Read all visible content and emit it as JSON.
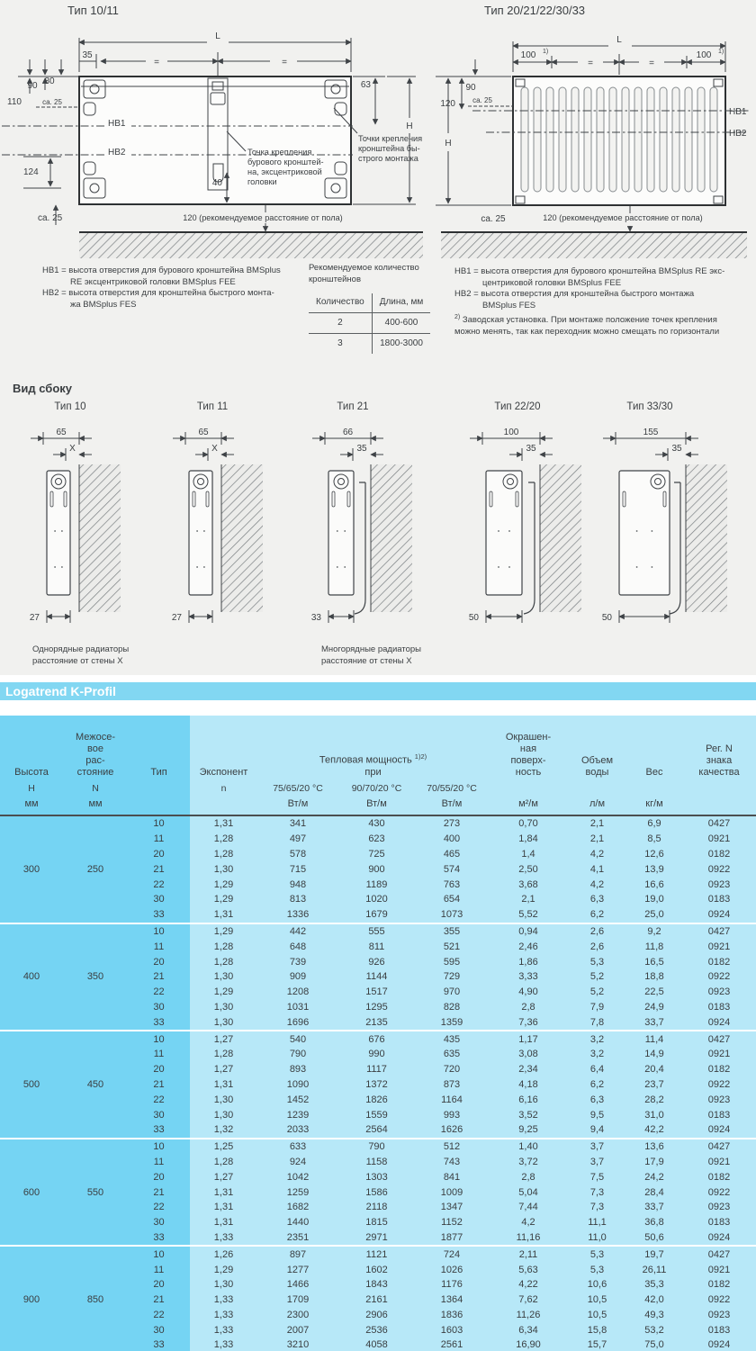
{
  "colors": {
    "band_bg": "#82d7f2",
    "table_dark_cyan": "#75d4f3",
    "table_light_cyan": "#b7e8f8",
    "page_top_bg": "#f1f1ef"
  },
  "front_views": {
    "left": {
      "title": "Тип 10/11",
      "dim_L": "L",
      "dim_35": "35",
      "eq": "=",
      "dim_90": "90",
      "dim_80": "80",
      "dim_110": "110",
      "ca25": "ca. 25",
      "hb1": "HB1",
      "hb2": "HB2",
      "dim_124": "124",
      "dim_63": "63",
      "dim_40": "40",
      "dim_H": "H",
      "floor_note": "120 (рекомендуемое расстояние от пола)",
      "callout_drill_lines": [
        "Точка крепления",
        "бурового кронштей-",
        "на, эксцентриковой",
        "головки"
      ],
      "callout_quick_lines": [
        "Точки крепления",
        "кронштейна бы-",
        "строго монтажа"
      ]
    },
    "right": {
      "title": "Тип 20/21/22/30/33",
      "dim_L": "L",
      "dim_100": "100",
      "sup1": "1)",
      "eq": "=",
      "dim_90": "90",
      "dim_120": "120",
      "ca25": "ca. 25",
      "dim_H": "H",
      "hb1": "HB1",
      "hb2": "HB2",
      "floor_note": "120 (рекомендуемое расстояние от пола)"
    }
  },
  "legend_left": {
    "lines": [
      {
        "t": "HB1 = высота отверстия для бурового кронштейна BMSplus",
        "c": false
      },
      {
        "t": "RE эксцентриковой головки BMSplus FEE",
        "c": true
      },
      {
        "t": "HB2 = высота отверстия для кронштейна быстрого монта-",
        "c": false
      },
      {
        "t": "жа BMSplus FES",
        "c": true
      }
    ]
  },
  "legend_bracket": {
    "title_lines": [
      "Рекомендуемое количество",
      "кронштейнов"
    ],
    "col_qty": "Количество",
    "col_len": "Длина, мм",
    "rows": [
      [
        "2",
        "400-600"
      ],
      [
        "3",
        "1800-3000"
      ]
    ]
  },
  "legend_right": {
    "lines": [
      {
        "t": "HB1 = высота отверстия для бурового кронштейна BMSplus RE экс-",
        "c": false
      },
      {
        "t": "центриковой головки BMSplus FEE",
        "c": true
      },
      {
        "t": "HB2 = высота отверстия для кронштейна быстрого монтажа",
        "c": false
      },
      {
        "t": "BMSplus FES",
        "c": true
      }
    ],
    "footnote_sup": "2)",
    "footnote_lines": [
      "Заводская установка. При монтаже положение точек крепления",
      "можно менять, так как переходник можно смещать по горизонтали"
    ]
  },
  "side_view": {
    "heading": "Вид сбоку",
    "items": [
      {
        "label": "Тип 10",
        "top_dim": "65",
        "gap_dim": "X",
        "bottom_dim": "27"
      },
      {
        "label": "Тип 11",
        "top_dim": "65",
        "gap_dim": "X",
        "bottom_dim": "27"
      },
      {
        "label": "Тип 21",
        "top_dim": "66",
        "gap_dim": "35",
        "bottom_dim": "33"
      },
      {
        "label": "Тип 22/20",
        "top_dim": "100",
        "gap_dim": "35",
        "bottom_dim": "50"
      },
      {
        "label": "Тип 33/30",
        "top_dim": "155",
        "gap_dim": "35",
        "bottom_dim": "50"
      }
    ],
    "caption_single_lines": [
      "Однорядные радиаторы",
      "расстояние от стены X"
    ],
    "caption_multi_lines": [
      "Многорядные радиаторы",
      "расстояние от стены X"
    ]
  },
  "band": {
    "title": "Logatrend K-Profil"
  },
  "table": {
    "header": {
      "height": "Высота",
      "spacing_lines": [
        "Межосе-",
        "вое",
        "рас-",
        "стояние"
      ],
      "type": "Тип",
      "exponent": "Экспонент",
      "power": "Тепловая мощность",
      "power_sup": "1)2)",
      "power_at": "при",
      "temp1": "75/65/20 °C",
      "temp2": "90/70/20 °C",
      "temp3": "70/55/20 °C",
      "surface_lines": [
        "Окрашен-",
        "ная",
        "поверх-",
        "ность"
      ],
      "volume_lines": [
        "Объем",
        "воды"
      ],
      "weight": "Вес",
      "reg_lines": [
        "Рег. N",
        "знака",
        "качества"
      ],
      "h": "H",
      "n_label": "N",
      "n_exp": "n",
      "mm": "мм",
      "wtm": "Вт/м",
      "m2m": "м²/м",
      "lm": "л/м",
      "kgm": "кг/м"
    },
    "groups": [
      {
        "height": "300",
        "spacing": "250",
        "rows": [
          {
            "type": "10",
            "n": "1,31",
            "p75": "341",
            "p90": "430",
            "p70": "273",
            "surface": "0,70",
            "volume": "2,1",
            "weight": "6,9",
            "reg": "0427"
          },
          {
            "type": "11",
            "n": "1,28",
            "p75": "497",
            "p90": "623",
            "p70": "400",
            "surface": "1,84",
            "volume": "2,1",
            "weight": "8,5",
            "reg": "0921"
          },
          {
            "type": "20",
            "n": "1,28",
            "p75": "578",
            "p90": "725",
            "p70": "465",
            "surface": "1,4",
            "volume": "4,2",
            "weight": "12,6",
            "reg": "0182"
          },
          {
            "type": "21",
            "n": "1,30",
            "p75": "715",
            "p90": "900",
            "p70": "574",
            "surface": "2,50",
            "volume": "4,1",
            "weight": "13,9",
            "reg": "0922"
          },
          {
            "type": "22",
            "n": "1,29",
            "p75": "948",
            "p90": "1189",
            "p70": "763",
            "surface": "3,68",
            "volume": "4,2",
            "weight": "16,6",
            "reg": "0923"
          },
          {
            "type": "30",
            "n": "1,29",
            "p75": "813",
            "p90": "1020",
            "p70": "654",
            "surface": "2,1",
            "volume": "6,3",
            "weight": "19,0",
            "reg": "0183"
          },
          {
            "type": "33",
            "n": "1,31",
            "p75": "1336",
            "p90": "1679",
            "p70": "1073",
            "surface": "5,52",
            "volume": "6,2",
            "weight": "25,0",
            "reg": "0924"
          }
        ]
      },
      {
        "height": "400",
        "spacing": "350",
        "rows": [
          {
            "type": "10",
            "n": "1,29",
            "p75": "442",
            "p90": "555",
            "p70": "355",
            "surface": "0,94",
            "volume": "2,6",
            "weight": "9,2",
            "reg": "0427"
          },
          {
            "type": "11",
            "n": "1,28",
            "p75": "648",
            "p90": "811",
            "p70": "521",
            "surface": "2,46",
            "volume": "2,6",
            "weight": "11,8",
            "reg": "0921"
          },
          {
            "type": "20",
            "n": "1,28",
            "p75": "739",
            "p90": "926",
            "p70": "595",
            "surface": "1,86",
            "volume": "5,3",
            "weight": "16,5",
            "reg": "0182"
          },
          {
            "type": "21",
            "n": "1,30",
            "p75": "909",
            "p90": "1144",
            "p70": "729",
            "surface": "3,33",
            "volume": "5,2",
            "weight": "18,8",
            "reg": "0922"
          },
          {
            "type": "22",
            "n": "1,29",
            "p75": "1208",
            "p90": "1517",
            "p70": "970",
            "surface": "4,90",
            "volume": "5,2",
            "weight": "22,5",
            "reg": "0923"
          },
          {
            "type": "30",
            "n": "1,30",
            "p75": "1031",
            "p90": "1295",
            "p70": "828",
            "surface": "2,8",
            "volume": "7,9",
            "weight": "24,9",
            "reg": "0183"
          },
          {
            "type": "33",
            "n": "1,30",
            "p75": "1696",
            "p90": "2135",
            "p70": "1359",
            "surface": "7,36",
            "volume": "7,8",
            "weight": "33,7",
            "reg": "0924"
          }
        ]
      },
      {
        "height": "500",
        "spacing": "450",
        "rows": [
          {
            "type": "10",
            "n": "1,27",
            "p75": "540",
            "p90": "676",
            "p70": "435",
            "surface": "1,17",
            "volume": "3,2",
            "weight": "11,4",
            "reg": "0427"
          },
          {
            "type": "11",
            "n": "1,28",
            "p75": "790",
            "p90": "990",
            "p70": "635",
            "surface": "3,08",
            "volume": "3,2",
            "weight": "14,9",
            "reg": "0921"
          },
          {
            "type": "20",
            "n": "1,27",
            "p75": "893",
            "p90": "1117",
            "p70": "720",
            "surface": "2,34",
            "volume": "6,4",
            "weight": "20,4",
            "reg": "0182"
          },
          {
            "type": "21",
            "n": "1,31",
            "p75": "1090",
            "p90": "1372",
            "p70": "873",
            "surface": "4,18",
            "volume": "6,2",
            "weight": "23,7",
            "reg": "0922"
          },
          {
            "type": "22",
            "n": "1,30",
            "p75": "1452",
            "p90": "1826",
            "p70": "1164",
            "surface": "6,16",
            "volume": "6,3",
            "weight": "28,2",
            "reg": "0923"
          },
          {
            "type": "30",
            "n": "1,30",
            "p75": "1239",
            "p90": "1559",
            "p70": "993",
            "surface": "3,52",
            "volume": "9,5",
            "weight": "31,0",
            "reg": "0183"
          },
          {
            "type": "33",
            "n": "1,32",
            "p75": "2033",
            "p90": "2564",
            "p70": "1626",
            "surface": "9,25",
            "volume": "9,4",
            "weight": "42,2",
            "reg": "0924"
          }
        ]
      },
      {
        "height": "600",
        "spacing": "550",
        "rows": [
          {
            "type": "10",
            "n": "1,25",
            "p75": "633",
            "p90": "790",
            "p70": "512",
            "surface": "1,40",
            "volume": "3,7",
            "weight": "13,6",
            "reg": "0427"
          },
          {
            "type": "11",
            "n": "1,28",
            "p75": "924",
            "p90": "1158",
            "p70": "743",
            "surface": "3,72",
            "volume": "3,7",
            "weight": "17,9",
            "reg": "0921"
          },
          {
            "type": "20",
            "n": "1,27",
            "p75": "1042",
            "p90": "1303",
            "p70": "841",
            "surface": "2,8",
            "volume": "7,5",
            "weight": "24,2",
            "reg": "0182"
          },
          {
            "type": "21",
            "n": "1,31",
            "p75": "1259",
            "p90": "1586",
            "p70": "1009",
            "surface": "5,04",
            "volume": "7,3",
            "weight": "28,4",
            "reg": "0922"
          },
          {
            "type": "22",
            "n": "1,31",
            "p75": "1682",
            "p90": "2118",
            "p70": "1347",
            "surface": "7,44",
            "volume": "7,3",
            "weight": "33,7",
            "reg": "0923"
          },
          {
            "type": "30",
            "n": "1,31",
            "p75": "1440",
            "p90": "1815",
            "p70": "1152",
            "surface": "4,2",
            "volume": "11,1",
            "weight": "36,8",
            "reg": "0183"
          },
          {
            "type": "33",
            "n": "1,33",
            "p75": "2351",
            "p90": "2971",
            "p70": "1877",
            "surface": "11,16",
            "volume": "11,0",
            "weight": "50,6",
            "reg": "0924"
          }
        ]
      },
      {
        "height": "900",
        "spacing": "850",
        "rows": [
          {
            "type": "10",
            "n": "1,26",
            "p75": "897",
            "p90": "1121",
            "p70": "724",
            "surface": "2,11",
            "volume": "5,3",
            "weight": "19,7",
            "reg": "0427"
          },
          {
            "type": "11",
            "n": "1,29",
            "p75": "1277",
            "p90": "1602",
            "p70": "1026",
            "surface": "5,63",
            "volume": "5,3",
            "weight": "26,11",
            "reg": "0921"
          },
          {
            "type": "20",
            "n": "1,30",
            "p75": "1466",
            "p90": "1843",
            "p70": "1176",
            "surface": "4,22",
            "volume": "10,6",
            "weight": "35,3",
            "reg": "0182"
          },
          {
            "type": "21",
            "n": "1,33",
            "p75": "1709",
            "p90": "2161",
            "p70": "1364",
            "surface": "7,62",
            "volume": "10,5",
            "weight": "42,0",
            "reg": "0922"
          },
          {
            "type": "22",
            "n": "1,33",
            "p75": "2300",
            "p90": "2906",
            "p70": "1836",
            "surface": "11,26",
            "volume": "10,5",
            "weight": "49,3",
            "reg": "0923"
          },
          {
            "type": "30",
            "n": "1,33",
            "p75": "2007",
            "p90": "2536",
            "p70": "1603",
            "surface": "6,34",
            "volume": "15,8",
            "weight": "53,2",
            "reg": "0183"
          },
          {
            "type": "33",
            "n": "1,33",
            "p75": "3210",
            "p90": "4058",
            "p70": "2561",
            "surface": "16,90",
            "volume": "15,7",
            "weight": "75,0",
            "reg": "0924"
          }
        ]
      }
    ]
  }
}
